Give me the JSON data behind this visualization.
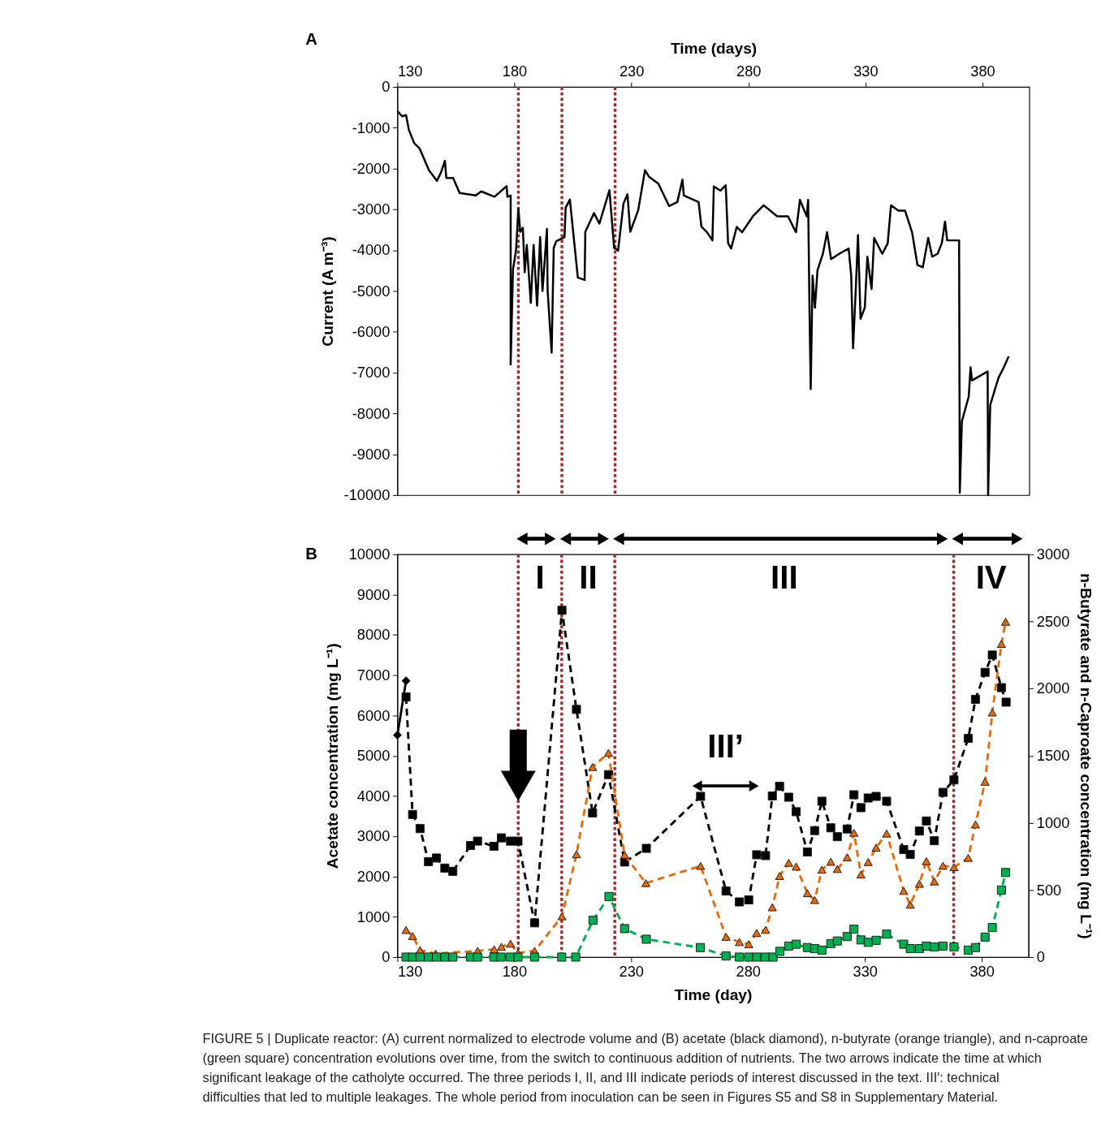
{
  "chart_data": [
    {
      "type": "line",
      "title": "A",
      "xlabel": "Time (days)",
      "ylabel": "Current (A m⁻³)",
      "xlim": [
        130,
        400
      ],
      "xticks": [
        130,
        180,
        230,
        280,
        330,
        380
      ],
      "ylim": [
        -10000,
        0
      ],
      "yticks": [
        0,
        -1000,
        -2000,
        -3000,
        -4000,
        -5000,
        -6000,
        -7000,
        -8000,
        -9000,
        -10000
      ],
      "grid": false,
      "series": [
        {
          "color": "#000000",
          "marker": "none",
          "line_style": "solid",
          "x": [
            130,
            132,
            133.7,
            134.9,
            137.2,
            139.5,
            143.5,
            146.9,
            148.6,
            150.3,
            150.9,
            153.8,
            156.6,
            163.5,
            165.8,
            171.5,
            176.7,
            177,
            178.4,
            178.4,
            179.4,
            180.7,
            181.7,
            182.5,
            183.6,
            184.4,
            185.3,
            187,
            188.2,
            189.7,
            191,
            192,
            193.9,
            194.2,
            195.9,
            196.8,
            197.9,
            201.4,
            201.9,
            203.7,
            207.1,
            210,
            210.3,
            214,
            216.3,
            220.6,
            222.6,
            224.3,
            226.6,
            228.3,
            229.5,
            232.9,
            235.8,
            237.5,
            241.5,
            246.1,
            249.6,
            251.8,
            252.4,
            258.7,
            259.9,
            262.3,
            264.6,
            265.2,
            268,
            270.3,
            271.3,
            272.6,
            275,
            277.3,
            281.9,
            286.5,
            292.3,
            296.9,
            300.3,
            302,
            304.9,
            305.5,
            306.1,
            306.6,
            307.4,
            308.4,
            309.5,
            311.8,
            313.6,
            315.3,
            318.7,
            322.8,
            323.9,
            324.7,
            325.9,
            326.8,
            327.9,
            329.7,
            330.8,
            332.6,
            333.7,
            337.2,
            339.5,
            340.9,
            344.1,
            346.9,
            349.9,
            352.2,
            354.5,
            356.8,
            358.5,
            360.8,
            362.6,
            364,
            364.9,
            370,
            370.3,
            371.2,
            374.1,
            374.9,
            375.5,
            382.2,
            382.4,
            383.3,
            386.8,
            389.1,
            391.2
          ],
          "values": [
            -590,
            -720,
            -690,
            -1050,
            -1380,
            -1510,
            -2040,
            -2300,
            -2100,
            -1810,
            -2230,
            -2230,
            -2600,
            -2660,
            -2560,
            -2690,
            -2430,
            -2690,
            -2660,
            -6800,
            -4470,
            -4000,
            -2990,
            -3550,
            -3450,
            -4540,
            -3870,
            -5290,
            -3870,
            -5360,
            -3680,
            -5000,
            -3480,
            -5000,
            -6510,
            -3940,
            -3780,
            -3680,
            -2960,
            -2760,
            -4670,
            -4730,
            -3550,
            -3090,
            -3350,
            -2530,
            -3940,
            -4010,
            -2860,
            -2630,
            -3550,
            -3020,
            -2040,
            -2200,
            -2370,
            -2920,
            -2820,
            -2270,
            -2660,
            -2820,
            -3420,
            -3560,
            -3760,
            -2440,
            -2540,
            -2410,
            -3830,
            -3960,
            -3430,
            -3560,
            -3170,
            -2900,
            -3170,
            -3170,
            -3560,
            -2770,
            -3170,
            -2770,
            -5550,
            -7400,
            -4620,
            -5410,
            -4490,
            -4090,
            -3560,
            -4220,
            -4090,
            -3960,
            -4620,
            -6400,
            -4880,
            -3630,
            -5680,
            -5410,
            -4160,
            -4950,
            -3700,
            -4090,
            -3830,
            -2900,
            -3030,
            -3030,
            -3560,
            -4360,
            -4420,
            -3700,
            -4160,
            -4090,
            -3830,
            -3300,
            -3760,
            -3760,
            -9940,
            -8190,
            -7590,
            -6870,
            -7190,
            -6970,
            -10000,
            -7790,
            -7130,
            -6870,
            -6600
          ]
        }
      ],
      "ref_lines": [
        {
          "axis": "x",
          "value": 181.7,
          "color": "#9b2d30",
          "line_style": "dotted"
        },
        {
          "axis": "x",
          "value": 200.3,
          "color": "#9b2d30",
          "line_style": "dotted"
        },
        {
          "axis": "x",
          "value": 223,
          "color": "#9b2d30",
          "line_style": "dotted"
        }
      ]
    },
    {
      "type": "line",
      "title": "B",
      "xlabel": "Time (day)",
      "ylabel": "Acetate concentration (mg L⁻¹)",
      "y2label": "n-Butyrate and n-Caproate concentration (mg L⁻¹)",
      "xlim": [
        130,
        400
      ],
      "xticks": [
        130,
        180,
        230,
        280,
        330,
        380
      ],
      "ylim": [
        0,
        10000
      ],
      "yticks": [
        0,
        1000,
        2000,
        3000,
        4000,
        5000,
        6000,
        7000,
        8000,
        9000,
        10000
      ],
      "y2lim": [
        0,
        3000
      ],
      "y2ticks": [
        0,
        500,
        1000,
        1500,
        2000,
        2500,
        3000
      ],
      "grid": false,
      "series": [
        {
          "color": "#000000",
          "marker": "diamond",
          "line_style": "solid",
          "x": [
            130,
            133.7
          ],
          "values": [
            5510,
            6860
          ]
        },
        {
          "color": "#000000",
          "marker": "square",
          "line_style": "dashed",
          "x": [
            133.7,
            136.5,
            139.7,
            143.3,
            146.7,
            150.3,
            153.7,
            161.3,
            164.3,
            171.3,
            174.5,
            178.4,
            181.6,
            188.7,
            200.4,
            206.6,
            213.5,
            220.3,
            227.2,
            236.5,
            259.7,
            270.6,
            276.3,
            280.3,
            283.7,
            287.5,
            290.4,
            293.5,
            297.4,
            300.6,
            305.4,
            308.5,
            311.6,
            315.4,
            318.2,
            322.4,
            325.3,
            328.3,
            331.4,
            334.8,
            339.3,
            346.6,
            349.4,
            353.3,
            356.3,
            359.7,
            363.4,
            368.1,
            374.2,
            377.3,
            381.4,
            384.5,
            388.4,
            390.4
          ],
          "values": [
            6460,
            3540,
            3190,
            2370,
            2460,
            2210,
            2130,
            2770,
            2880,
            2750,
            2960,
            2880,
            2880,
            850,
            8610,
            6150,
            3580,
            4530,
            2360,
            2700,
            3990,
            1640,
            1370,
            1420,
            2540,
            2520,
            4000,
            4240,
            3970,
            3610,
            2610,
            3140,
            3870,
            3210,
            2990,
            3180,
            4030,
            3710,
            3950,
            3990,
            3870,
            2670,
            2550,
            3130,
            3380,
            2890,
            4090,
            4400,
            5430,
            6400,
            7070,
            7500,
            6690,
            6330
          ]
        },
        {
          "axis": "y2",
          "color": "#e46c0a",
          "marker": "triangle",
          "line_style": "dashed",
          "x": [
            133.7,
            136.5,
            139.7,
            146.4,
            164.3,
            171.4,
            174.5,
            178.4,
            181.6,
            188.7,
            200.4,
            206.6,
            213.5,
            220.3,
            227.2,
            236.3,
            259.7,
            270.6,
            276.3,
            280.3,
            283.7,
            287.5,
            290.4,
            293.5,
            297.4,
            300.6,
            305.4,
            308.5,
            311.6,
            315.4,
            318.2,
            322.4,
            325.3,
            328.3,
            331.4,
            334.8,
            339.3,
            346.6,
            349.4,
            353.3,
            356.3,
            359.7,
            363.4,
            368.1,
            374.2,
            377.3,
            381.4,
            384.5,
            388.4,
            390.2
          ],
          "values": [
            202,
            157,
            52,
            26,
            46,
            58,
            77,
            100,
            31,
            46,
            304,
            766,
            1416,
            1521,
            761,
            551,
            679,
            151,
            112,
            96,
            180,
            203,
            371,
            604,
            702,
            674,
            476,
            425,
            651,
            710,
            656,
            743,
            926,
            615,
            708,
            815,
            920,
            493,
            390,
            546,
            714,
            563,
            680,
            670,
            739,
            988,
            1306,
            1822,
            2333,
            2498
          ]
        },
        {
          "axis": "y2",
          "color": "#00b050",
          "marker": "square",
          "line_style": "dashed",
          "x": [
            133.7,
            136.5,
            139.7,
            143.3,
            146.7,
            150.3,
            153.7,
            161.3,
            164.3,
            171.3,
            174.3,
            178.2,
            181.6,
            188.7,
            200.3,
            206.3,
            213.7,
            220.5,
            227.2,
            236.5,
            259.6,
            270.6,
            276.3,
            280.3,
            283.7,
            287.3,
            290.7,
            293.6,
            297.4,
            300.6,
            305.4,
            308.5,
            311.6,
            315.4,
            318.2,
            322.4,
            325.3,
            328.3,
            331.4,
            334.8,
            339.3,
            346.6,
            349.4,
            353.3,
            356.3,
            359.7,
            363.4,
            368.1,
            374.2,
            377.3,
            381.4,
            384.5,
            388.4,
            390.2
          ],
          "values": [
            0,
            0,
            0,
            0,
            0,
            0,
            0,
            0,
            0,
            0,
            0,
            0,
            0,
            0,
            0,
            0,
            274,
            451,
            212,
            133,
            71,
            8,
            0,
            0,
            0,
            0,
            0,
            43,
            82,
            96,
            71,
            63,
            52,
            100,
            120,
            153,
            208,
            128,
            110,
            125,
            171,
            96,
            63,
            63,
            82,
            75,
            82,
            75,
            52,
            71,
            149,
            220,
            499,
            630
          ]
        }
      ],
      "ref_lines": [
        {
          "axis": "x",
          "value": 181.7,
          "color": "#9b2d30",
          "line_style": "dotted"
        },
        {
          "axis": "x",
          "value": 200.3,
          "color": "#9b2d30",
          "line_style": "dotted"
        },
        {
          "axis": "x",
          "value": 223,
          "color": "#9b2d30",
          "line_style": "dotted"
        },
        {
          "axis": "x",
          "value": 368,
          "color": "#9b2d30",
          "line_style": "dotted"
        }
      ],
      "annotations": [
        "I",
        "II",
        "III",
        "IV",
        "III’",
        "FIGURE 5 | Duplicate reactor: (A) current normalized to electrode volume and (B) acetate (black diamond), n-butyrate (orange triangle), and n-caproate (green square) concentration evolutions over time, from the switch to continuous addition of nutrients. The two arrows indicate the time at which significant leakage of the catholyte occurred. The three periods I, II, and III indicate periods of interest discussed in the text. III′: technical difficulties that led to multiple leakages. The whole period from inoculation can be seen in Figures S5 and S8 in Supplementary Material."
      ]
    }
  ]
}
